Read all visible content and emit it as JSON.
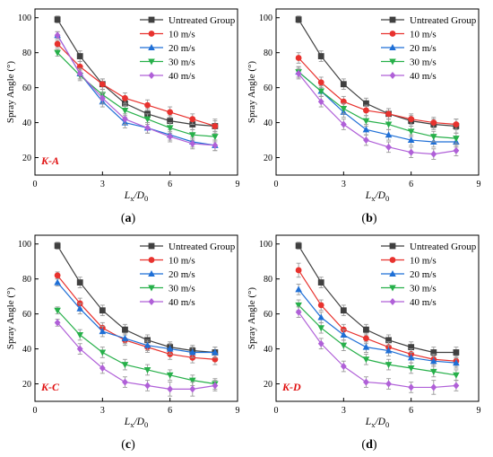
{
  "colors": {
    "untreated": "#404040",
    "s10": "#e8322e",
    "s20": "#1f6fd6",
    "s30": "#27b04a",
    "s40": "#b060d8",
    "tag": "#e01010",
    "axis": "#000000"
  },
  "chart_data": [
    {
      "type": "line",
      "panel_label": "(a)",
      "tag": "K-A",
      "xlabel": "Lx/D0",
      "ylabel": "Spray Angle (°)",
      "xlim": [
        0,
        9
      ],
      "ylim": [
        10,
        105
      ],
      "xticks": [
        0,
        3,
        6,
        9
      ],
      "yticks": [
        20,
        40,
        60,
        80,
        100
      ],
      "grid": false,
      "legend": "top-right",
      "x": [
        1,
        2,
        3,
        4,
        5,
        6,
        7,
        8
      ],
      "series": [
        {
          "name": "Untreated Group",
          "color": "#404040",
          "marker": "square",
          "values": [
            99,
            78,
            62,
            51,
            45,
            41,
            39,
            38
          ],
          "errors": [
            2,
            3,
            3,
            3,
            3,
            3,
            3,
            4
          ]
        },
        {
          "name": "10 m/s",
          "color": "#e8322e",
          "marker": "circle",
          "values": [
            85,
            72,
            62,
            54,
            50,
            46,
            42,
            38
          ],
          "errors": [
            2,
            3,
            3,
            3,
            3,
            3,
            3,
            3
          ]
        },
        {
          "name": "20 m/s",
          "color": "#1f6fd6",
          "marker": "triangle-up",
          "values": [
            90,
            68,
            52,
            40,
            37,
            33,
            29,
            27
          ],
          "errors": [
            2,
            3,
            3,
            3,
            3,
            3,
            3,
            3
          ]
        },
        {
          "name": "30 m/s",
          "color": "#27b04a",
          "marker": "triangle-down",
          "values": [
            80,
            67,
            56,
            47,
            42,
            37,
            33,
            32
          ],
          "errors": [
            2,
            3,
            3,
            3,
            3,
            3,
            3,
            3
          ]
        },
        {
          "name": "40 m/s",
          "color": "#b060d8",
          "marker": "diamond",
          "values": [
            90,
            68,
            54,
            42,
            37,
            32,
            28,
            27
          ],
          "errors": [
            2,
            3,
            3,
            3,
            3,
            3,
            3,
            3
          ]
        }
      ]
    },
    {
      "type": "line",
      "panel_label": "(b)",
      "tag": "",
      "xlabel": "Lx/D0",
      "ylabel": "Spray Angle (°)",
      "xlim": [
        0,
        9
      ],
      "ylim": [
        10,
        105
      ],
      "xticks": [
        0,
        3,
        6,
        9
      ],
      "yticks": [
        20,
        40,
        60,
        80,
        100
      ],
      "grid": false,
      "legend": "top-right",
      "x": [
        1,
        2,
        3,
        4,
        5,
        6,
        7,
        8
      ],
      "series": [
        {
          "name": "Untreated Group",
          "color": "#404040",
          "marker": "square",
          "values": [
            99,
            78,
            62,
            51,
            45,
            41,
            39,
            38
          ],
          "errors": [
            2,
            3,
            3,
            3,
            3,
            3,
            3,
            4
          ]
        },
        {
          "name": "10 m/s",
          "color": "#e8322e",
          "marker": "circle",
          "values": [
            77,
            63,
            52,
            47,
            45,
            42,
            40,
            39
          ],
          "errors": [
            3,
            3,
            3,
            3,
            3,
            3,
            3,
            3
          ]
        },
        {
          "name": "20 m/s",
          "color": "#1f6fd6",
          "marker": "triangle-up",
          "values": [
            69,
            58,
            46,
            36,
            33,
            30,
            29,
            29
          ],
          "errors": [
            3,
            3,
            3,
            3,
            3,
            3,
            3,
            3
          ]
        },
        {
          "name": "30 m/s",
          "color": "#27b04a",
          "marker": "triangle-down",
          "values": [
            69,
            58,
            48,
            41,
            39,
            35,
            32,
            31
          ],
          "errors": [
            3,
            3,
            3,
            3,
            3,
            3,
            3,
            3
          ]
        },
        {
          "name": "40 m/s",
          "color": "#b060d8",
          "marker": "diamond",
          "values": [
            68,
            52,
            39,
            30,
            26,
            23,
            22,
            24
          ],
          "errors": [
            3,
            3,
            3,
            3,
            3,
            3,
            3,
            3
          ]
        }
      ]
    },
    {
      "type": "line",
      "panel_label": "(c)",
      "tag": "K-C",
      "xlabel": "Lx/D0",
      "ylabel": "Spray Angle (°)",
      "xlim": [
        0,
        9
      ],
      "ylim": [
        10,
        105
      ],
      "xticks": [
        0,
        3,
        6,
        9
      ],
      "yticks": [
        20,
        40,
        60,
        80,
        100
      ],
      "grid": false,
      "legend": "top-right",
      "x": [
        1,
        2,
        3,
        4,
        5,
        6,
        7,
        8
      ],
      "series": [
        {
          "name": "Untreated Group",
          "color": "#404040",
          "marker": "square",
          "values": [
            99,
            78,
            62,
            51,
            45,
            41,
            39,
            38
          ],
          "errors": [
            2,
            3,
            3,
            3,
            3,
            3,
            3,
            3
          ]
        },
        {
          "name": "10 m/s",
          "color": "#e8322e",
          "marker": "circle",
          "values": [
            82,
            66,
            52,
            45,
            41,
            37,
            35,
            34
          ],
          "errors": [
            2,
            3,
            3,
            3,
            3,
            3,
            3,
            3
          ]
        },
        {
          "name": "20 m/s",
          "color": "#1f6fd6",
          "marker": "triangle-up",
          "values": [
            78,
            63,
            50,
            46,
            42,
            40,
            38,
            38
          ],
          "errors": [
            2,
            3,
            3,
            3,
            3,
            3,
            3,
            3
          ]
        },
        {
          "name": "30 m/s",
          "color": "#27b04a",
          "marker": "triangle-down",
          "values": [
            62,
            48,
            38,
            31,
            28,
            25,
            22,
            20
          ],
          "errors": [
            2,
            3,
            3,
            3,
            3,
            3,
            3,
            3
          ]
        },
        {
          "name": "40 m/s",
          "color": "#b060d8",
          "marker": "diamond",
          "values": [
            55,
            40,
            29,
            21,
            19,
            17,
            17,
            19
          ],
          "errors": [
            2,
            3,
            3,
            3,
            3,
            4,
            4,
            3
          ]
        }
      ]
    },
    {
      "type": "line",
      "panel_label": "(d)",
      "tag": "K-D",
      "xlabel": "Lx/D0",
      "ylabel": "Spray Angle (°)",
      "xlim": [
        0,
        9
      ],
      "ylim": [
        10,
        105
      ],
      "xticks": [
        0,
        3,
        6,
        9
      ],
      "yticks": [
        20,
        40,
        60,
        80,
        100
      ],
      "grid": false,
      "legend": "top-right",
      "x": [
        1,
        2,
        3,
        4,
        5,
        6,
        7,
        8
      ],
      "series": [
        {
          "name": "Untreated Group",
          "color": "#404040",
          "marker": "square",
          "values": [
            99,
            78,
            62,
            51,
            45,
            41,
            38,
            38
          ],
          "errors": [
            2,
            3,
            3,
            3,
            3,
            3,
            3,
            3
          ]
        },
        {
          "name": "10 m/s",
          "color": "#e8322e",
          "marker": "circle",
          "values": [
            85,
            65,
            51,
            46,
            41,
            37,
            34,
            33
          ],
          "errors": [
            4,
            3,
            3,
            3,
            3,
            3,
            3,
            3
          ]
        },
        {
          "name": "20 m/s",
          "color": "#1f6fd6",
          "marker": "triangle-up",
          "values": [
            74,
            58,
            48,
            41,
            39,
            35,
            33,
            32
          ],
          "errors": [
            3,
            3,
            3,
            3,
            3,
            3,
            3,
            3
          ]
        },
        {
          "name": "30 m/s",
          "color": "#27b04a",
          "marker": "triangle-down",
          "values": [
            65,
            52,
            42,
            34,
            31,
            29,
            27,
            25
          ],
          "errors": [
            3,
            3,
            3,
            3,
            3,
            3,
            3,
            3
          ]
        },
        {
          "name": "40 m/s",
          "color": "#b060d8",
          "marker": "diamond",
          "values": [
            61,
            43,
            30,
            21,
            20,
            18,
            18,
            19
          ],
          "errors": [
            3,
            3,
            3,
            3,
            3,
            3,
            4,
            3
          ]
        }
      ]
    }
  ]
}
